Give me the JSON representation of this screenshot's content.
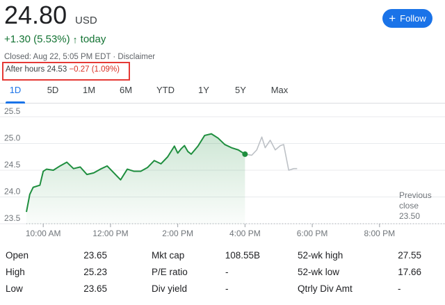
{
  "header": {
    "price": "24.80",
    "currency": "USD",
    "change": "+1.30 (5.53%)",
    "change_arrow": "↑",
    "change_period": "today",
    "closed_text": "Closed: Aug 22, 5:05 PM EDT · Disclaimer",
    "after_hours_label": "After hours 24.53",
    "after_hours_change": "−0.27 (1.09%)",
    "follow_label": "Follow",
    "follow_icon": "plus-icon"
  },
  "tabs": [
    {
      "label": "1D",
      "active": true
    },
    {
      "label": "5D",
      "active": false
    },
    {
      "label": "1M",
      "active": false
    },
    {
      "label": "6M",
      "active": false
    },
    {
      "label": "YTD",
      "active": false
    },
    {
      "label": "1Y",
      "active": false
    },
    {
      "label": "5Y",
      "active": false
    },
    {
      "label": "Max",
      "active": false
    }
  ],
  "chart_data": {
    "type": "line",
    "title": "",
    "xlabel": "",
    "ylabel": "",
    "ylim": [
      23.5,
      25.5
    ],
    "xlim": [
      9.5,
      20.5
    ],
    "y_ticks": [
      "25.5",
      "25.0",
      "24.5",
      "24.0",
      "23.5"
    ],
    "x_ticks": [
      "10:00 AM",
      "12:00 PM",
      "2:00 PM",
      "4:00 PM",
      "6:00 PM",
      "8:00 PM"
    ],
    "grid": true,
    "previous_close": {
      "label_line1": "Previous",
      "label_line2": "close",
      "value": "23.50"
    },
    "series": [
      {
        "session": "regular",
        "color": "#1e8e3e",
        "x": [
          9.5,
          9.6,
          9.7,
          9.9,
          10.0,
          10.1,
          10.3,
          10.5,
          10.7,
          10.9,
          11.1,
          11.3,
          11.5,
          11.7,
          11.9,
          12.1,
          12.3,
          12.5,
          12.7,
          12.9,
          13.1,
          13.3,
          13.5,
          13.7,
          13.9,
          14.0,
          14.1,
          14.2,
          14.3,
          14.4,
          14.6,
          14.8,
          15.0,
          15.2,
          15.4,
          15.6,
          15.8,
          16.0
        ],
        "y": [
          23.72,
          24.05,
          24.18,
          24.22,
          24.48,
          24.52,
          24.5,
          24.58,
          24.65,
          24.53,
          24.56,
          24.42,
          24.45,
          24.52,
          24.58,
          24.45,
          24.32,
          24.52,
          24.48,
          24.48,
          24.55,
          24.68,
          24.62,
          24.75,
          24.95,
          24.82,
          24.9,
          24.96,
          24.85,
          24.8,
          24.95,
          25.15,
          25.18,
          25.1,
          24.98,
          24.92,
          24.88,
          24.8
        ]
      },
      {
        "session": "after-hours",
        "color": "#bdc1c6",
        "x": [
          16.0,
          16.2,
          16.35,
          16.5,
          16.6,
          16.75,
          16.9,
          17.05,
          17.15,
          17.3,
          17.45,
          17.55
        ],
        "y": [
          24.8,
          24.78,
          24.88,
          25.12,
          24.92,
          25.06,
          24.88,
          24.96,
          24.98,
          24.5,
          24.53,
          24.53
        ]
      }
    ],
    "last_point": {
      "x": 16.0,
      "y": 24.8
    }
  },
  "stats": [
    [
      {
        "label": "Open",
        "value": "23.65"
      },
      {
        "label": "Mkt cap",
        "value": "108.55B"
      },
      {
        "label": "52-wk high",
        "value": "27.55"
      }
    ],
    [
      {
        "label": "High",
        "value": "25.23"
      },
      {
        "label": "P/E ratio",
        "value": "-"
      },
      {
        "label": "52-wk low",
        "value": "17.66"
      }
    ],
    [
      {
        "label": "Low",
        "value": "23.65"
      },
      {
        "label": "Div yield",
        "value": "-"
      },
      {
        "label": "Qtrly Div Amt",
        "value": "-"
      }
    ]
  ]
}
